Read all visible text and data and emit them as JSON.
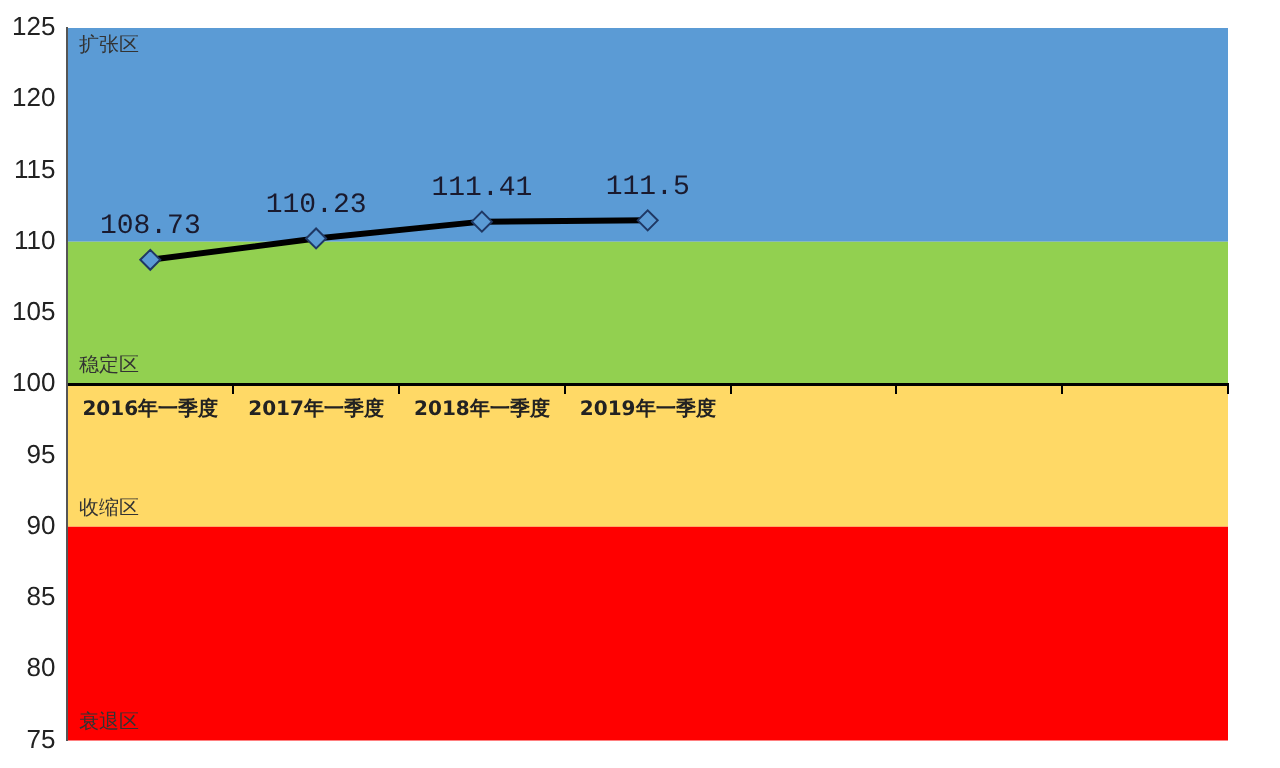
{
  "chart_data": {
    "type": "line",
    "categories": [
      "2016年一季度",
      "2017年一季度",
      "2018年一季度",
      "2019年一季度",
      null,
      null,
      null
    ],
    "series": [
      {
        "color": "#000000",
        "values": [
          108.73,
          110.23,
          111.41,
          111.5,
          null,
          null,
          null
        ]
      }
    ],
    "ylim": [
      75,
      125
    ],
    "yticks": [
      75,
      80,
      85,
      90,
      95,
      100,
      105,
      110,
      115,
      120,
      125
    ],
    "bands": [
      {
        "axis": "y",
        "from": 110,
        "to": 125,
        "label": "扩张区",
        "color": "#5b9bd5"
      },
      {
        "axis": "y",
        "from": 100,
        "to": 110,
        "label": "稳定区",
        "color": "#92d050"
      },
      {
        "axis": "y",
        "from": 90,
        "to": 100,
        "label": "收缩区",
        "color": "#ffd966"
      },
      {
        "axis": "y",
        "from": 75,
        "to": 90,
        "label": "衰退区",
        "color": "#ff0000"
      }
    ],
    "data_labels": true,
    "marker": "diamond",
    "line_style": "solid",
    "grid": false,
    "legend": false
  }
}
